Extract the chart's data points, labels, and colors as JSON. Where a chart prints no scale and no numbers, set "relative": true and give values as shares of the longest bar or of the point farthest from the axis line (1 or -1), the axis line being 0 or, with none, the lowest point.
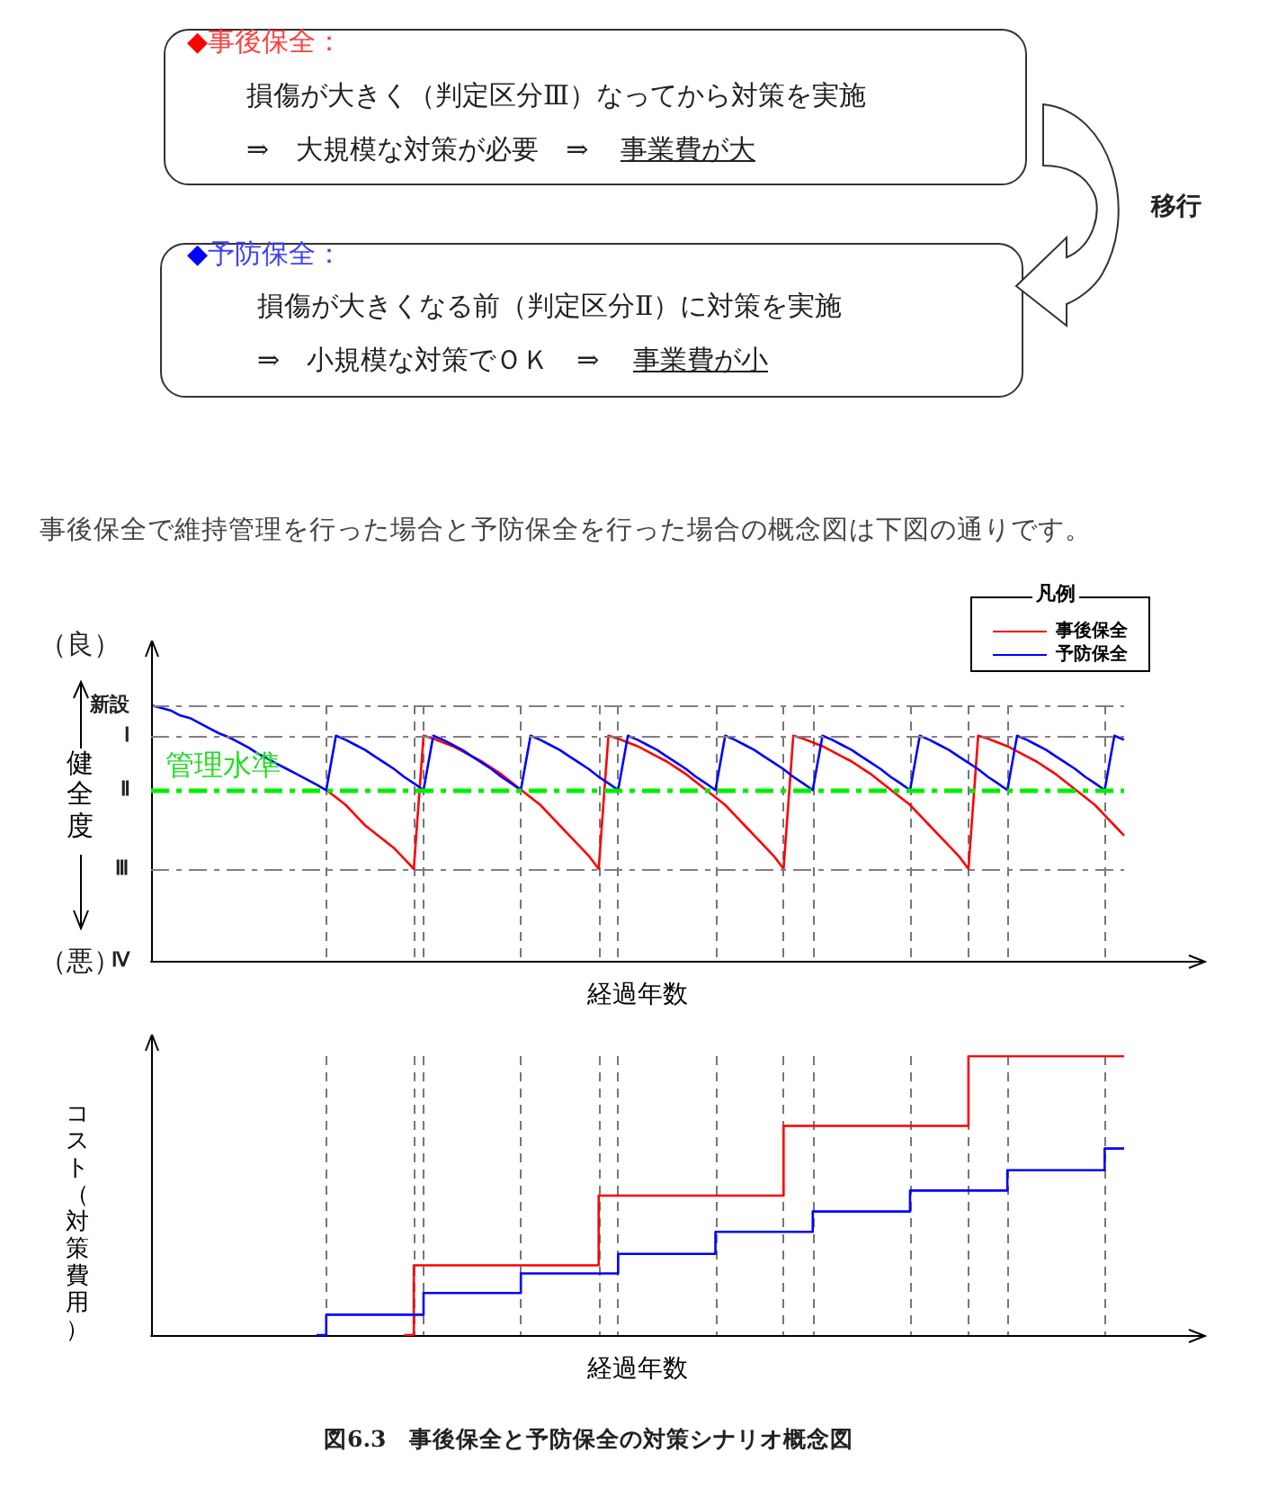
{
  "chart_data": [
    {
      "type": "line",
      "relative": true,
      "xlabel": "経過年数",
      "ylabel": "健全度",
      "legend": "top right",
      "legend_title": "凡例",
      "tick_labels": false,
      "categories": [
        null,
        null,
        null,
        null,
        null,
        null,
        null,
        null,
        null,
        null,
        null,
        null,
        null,
        null,
        null,
        null,
        null,
        null,
        null,
        null,
        null,
        null,
        null,
        null,
        null,
        null,
        null,
        null,
        null,
        null,
        null,
        null,
        null,
        null,
        null,
        null,
        null,
        null,
        null,
        null,
        null,
        null,
        null,
        null,
        null,
        null,
        null,
        null,
        null,
        null,
        null,
        null,
        null,
        null,
        null,
        null,
        null,
        null,
        null,
        null,
        null,
        null,
        null,
        null,
        null,
        null,
        null,
        null,
        null,
        null,
        null,
        null,
        null,
        null,
        null,
        null,
        null,
        null,
        null,
        null,
        null,
        null,
        null,
        null,
        null,
        null,
        null,
        null,
        null,
        null,
        null,
        null,
        null,
        null,
        null,
        null,
        null,
        null,
        null,
        null,
        null
      ],
      "annotations": [
        "◆事後保全：",
        "損傷が大きく（判定区分Ⅲ）なってから対策を実施",
        "⇒　大規模な対策が必要　⇒",
        "事業費が大",
        "◆予防保全：",
        "損傷が大きくなる前（判定区分Ⅱ）に対策を実施",
        "⇒　小規模な対策でＯＫ　⇒",
        "事業費が小",
        "移行",
        "事後保全で維持管理を行った場合と予防保全を行った場合の概念図は下図の通りです。",
        "（良）",
        "（悪）",
        {
          "text": "管理水準",
          "y": 0.67
        }
      ],
      "series": [
        {
          "name": "事後保全",
          "color": "#ff0000",
          "values": [
            null,
            null,
            null,
            null,
            null,
            null,
            null,
            null,
            null,
            null,
            null,
            null,
            null,
            null,
            null,
            null,
            null,
            null,
            0.668,
            0.64,
            0.61,
            0.57,
            0.53,
            0.5,
            0.47,
            0.44,
            0.4,
            0.36,
            0.881,
            0.87,
            0.855,
            0.84,
            0.82,
            0.8,
            0.78,
            0.755,
            0.73,
            0.7,
            0.67,
            0.64,
            0.61,
            0.57,
            0.53,
            0.49,
            0.45,
            0.41,
            0.36,
            0.881,
            0.87,
            0.855,
            0.84,
            0.82,
            0.8,
            0.78,
            0.755,
            0.73,
            0.7,
            0.67,
            0.64,
            0.61,
            0.57,
            0.53,
            0.49,
            0.45,
            0.41,
            0.36,
            0.881,
            0.87,
            0.855,
            0.84,
            0.82,
            0.8,
            0.78,
            0.755,
            0.73,
            0.7,
            0.67,
            0.64,
            0.61,
            0.57,
            0.53,
            0.49,
            0.45,
            0.41,
            0.36,
            0.881,
            0.87,
            0.855,
            0.84,
            0.82,
            0.8,
            0.78,
            0.755,
            0.73,
            0.7,
            0.67,
            0.64,
            0.61,
            0.57,
            0.53,
            0.49
          ]
        },
        {
          "name": "予防保全",
          "color": "#0000ff",
          "values": [
            1,
            0.99,
            0.98,
            0.96,
            0.95,
            0.93,
            0.91,
            0.89,
            0.875,
            0.855,
            0.835,
            0.81,
            0.79,
            0.77,
            0.75,
            0.73,
            0.71,
            0.69,
            0.668,
            0.881,
            0.865,
            0.845,
            0.825,
            0.8,
            0.775,
            0.75,
            0.72,
            0.695,
            0.668,
            0.881,
            0.865,
            0.845,
            0.825,
            0.8,
            0.775,
            0.75,
            0.72,
            0.695,
            0.668,
            0.881,
            0.865,
            0.845,
            0.825,
            0.8,
            0.775,
            0.75,
            0.72,
            0.695,
            0.668,
            0.881,
            0.865,
            0.845,
            0.825,
            0.8,
            0.775,
            0.75,
            0.72,
            0.695,
            0.668,
            0.881,
            0.865,
            0.845,
            0.825,
            0.8,
            0.775,
            0.75,
            0.72,
            0.695,
            0.668,
            0.881,
            0.865,
            0.845,
            0.825,
            0.8,
            0.775,
            0.75,
            0.72,
            0.695,
            0.668,
            0.881,
            0.865,
            0.845,
            0.825,
            0.8,
            0.775,
            0.75,
            0.72,
            0.695,
            0.668,
            0.881,
            0.865,
            0.845,
            0.825,
            0.8,
            0.775,
            0.75,
            0.72,
            0.695,
            0.668,
            0.881,
            0.865
          ]
        }
      ],
      "ref_lines": [
        {
          "axis": "y",
          "value": 1,
          "label": "新設",
          "color": "#808080",
          "line_style": "dashed"
        },
        {
          "axis": "y",
          "value": 0.881,
          "label": "Ⅰ",
          "color": "#808080",
          "line_style": "dashed"
        },
        {
          "axis": "y",
          "value": 0.67,
          "label": "Ⅱ",
          "color": "#00ee00",
          "line_style": "dashed"
        },
        {
          "axis": "y",
          "value": 0.36,
          "label": "Ⅲ",
          "color": "#808080",
          "line_style": "dashed"
        },
        {
          "axis": "y",
          "value": 0,
          "label": "Ⅳ",
          "color": "#000000"
        }
      ],
      "grid": "x"
    },
    {
      "type": "step",
      "relative": true,
      "xlabel": "経過年数",
      "ylabel": "コスト（対策費用）",
      "tick_labels": false,
      "categories": [
        null,
        null,
        null,
        null,
        null,
        null,
        null,
        null,
        null,
        null,
        null,
        null,
        null,
        null,
        null,
        null,
        null,
        null,
        null,
        null,
        null,
        null,
        null,
        null,
        null,
        null,
        null,
        null,
        null,
        null,
        null,
        null,
        null,
        null,
        null,
        null,
        null,
        null,
        null,
        null,
        null,
        null,
        null,
        null,
        null,
        null,
        null,
        null,
        null,
        null,
        null,
        null,
        null,
        null,
        null,
        null,
        null,
        null,
        null,
        null,
        null,
        null,
        null,
        null,
        null,
        null,
        null,
        null,
        null,
        null,
        null,
        null,
        null,
        null,
        null,
        null,
        null,
        null,
        null,
        null,
        null,
        null,
        null,
        null,
        null,
        null,
        null,
        null,
        null,
        null,
        null,
        null,
        null,
        null,
        null,
        null,
        null,
        null,
        null,
        null,
        null
      ],
      "annotations": [
        "図6.3　事後保全と予防保全の対策シナリオ概念図"
      ],
      "series": [
        {
          "color": "#ff0000",
          "values": [
            null,
            null,
            null,
            null,
            null,
            null,
            null,
            null,
            null,
            null,
            null,
            null,
            null,
            null,
            null,
            null,
            null,
            null,
            null,
            null,
            null,
            null,
            null,
            null,
            null,
            null,
            0,
            0.25,
            0.25,
            0.25,
            0.25,
            0.25,
            0.25,
            0.25,
            0.25,
            0.25,
            0.25,
            0.25,
            0.25,
            0.25,
            0.25,
            0.25,
            0.25,
            0.25,
            0.25,
            0.25,
            0.5,
            0.5,
            0.5,
            0.5,
            0.5,
            0.5,
            0.5,
            0.5,
            0.5,
            0.5,
            0.5,
            0.5,
            0.5,
            0.5,
            0.5,
            0.5,
            0.5,
            0.5,
            0.5,
            0.75,
            0.75,
            0.75,
            0.75,
            0.75,
            0.75,
            0.75,
            0.75,
            0.75,
            0.75,
            0.75,
            0.75,
            0.75,
            0.75,
            0.75,
            0.75,
            0.75,
            0.75,
            0.75,
            1,
            1,
            1,
            1,
            1,
            1,
            1,
            1,
            1,
            1,
            1,
            1,
            1,
            1,
            1,
            1,
            1
          ]
        },
        {
          "color": "#0000ff",
          "values": [
            null,
            null,
            null,
            null,
            null,
            null,
            null,
            null,
            null,
            null,
            null,
            null,
            null,
            null,
            null,
            null,
            null,
            0,
            0.073,
            0.073,
            0.073,
            0.073,
            0.073,
            0.073,
            0.073,
            0.073,
            0.073,
            0.073,
            0.151,
            0.151,
            0.151,
            0.151,
            0.151,
            0.151,
            0.151,
            0.151,
            0.151,
            0.151,
            0.221,
            0.221,
            0.221,
            0.221,
            0.221,
            0.221,
            0.221,
            0.221,
            0.221,
            0.221,
            0.291,
            0.291,
            0.291,
            0.291,
            0.291,
            0.291,
            0.291,
            0.291,
            0.291,
            0.291,
            0.37,
            0.37,
            0.37,
            0.37,
            0.37,
            0.37,
            0.37,
            0.37,
            0.37,
            0.37,
            0.443,
            0.443,
            0.443,
            0.443,
            0.443,
            0.443,
            0.443,
            0.443,
            0.443,
            0.443,
            0.518,
            0.518,
            0.518,
            0.518,
            0.518,
            0.518,
            0.518,
            0.518,
            0.518,
            0.518,
            0.591,
            0.591,
            0.591,
            0.591,
            0.591,
            0.591,
            0.591,
            0.591,
            0.591,
            0.591,
            0.669,
            0.669,
            0.669
          ]
        }
      ],
      "grid": "x"
    }
  ]
}
